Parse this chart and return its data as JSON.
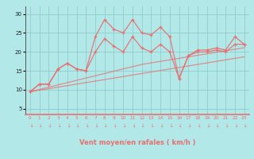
{
  "x": [
    0,
    1,
    2,
    3,
    4,
    5,
    6,
    7,
    8,
    9,
    10,
    11,
    12,
    13,
    14,
    15,
    16,
    17,
    18,
    19,
    20,
    21,
    22,
    23
  ],
  "rafales": [
    9.5,
    11.5,
    11.5,
    15.5,
    17.0,
    15.5,
    15.0,
    24.0,
    28.5,
    26.0,
    25.0,
    28.5,
    25.0,
    24.5,
    26.5,
    24.0,
    13.0,
    19.0,
    20.5,
    20.5,
    21.0,
    20.5,
    24.0,
    22.0
  ],
  "moyen": [
    9.5,
    11.5,
    11.5,
    15.5,
    17.0,
    15.5,
    15.0,
    20.0,
    23.5,
    21.5,
    20.0,
    24.0,
    21.0,
    20.0,
    22.0,
    20.0,
    13.0,
    19.0,
    20.0,
    20.0,
    20.5,
    20.0,
    22.0,
    22.0
  ],
  "trend1": [
    9.5,
    10.1,
    10.7,
    11.3,
    11.9,
    12.5,
    13.1,
    13.7,
    14.3,
    14.9,
    15.5,
    16.1,
    16.7,
    17.1,
    17.5,
    17.9,
    18.3,
    18.7,
    19.1,
    19.5,
    19.9,
    20.3,
    20.7,
    21.1
  ],
  "trend2": [
    9.5,
    9.9,
    10.3,
    10.7,
    11.1,
    11.5,
    11.9,
    12.3,
    12.7,
    13.1,
    13.5,
    13.9,
    14.3,
    14.7,
    15.1,
    15.5,
    15.9,
    16.3,
    16.7,
    17.1,
    17.5,
    17.9,
    18.3,
    18.7
  ],
  "bg_color": "#b3e8e8",
  "line_color": "#e87070",
  "grid_color": "#8ecece",
  "axis_color": "#555555",
  "xlabel": "Vent moyen/en rafales ( km/h )",
  "yticks": [
    5,
    10,
    15,
    20,
    25,
    30
  ],
  "xlim": [
    -0.5,
    23.5
  ],
  "ylim": [
    3.5,
    32
  ]
}
